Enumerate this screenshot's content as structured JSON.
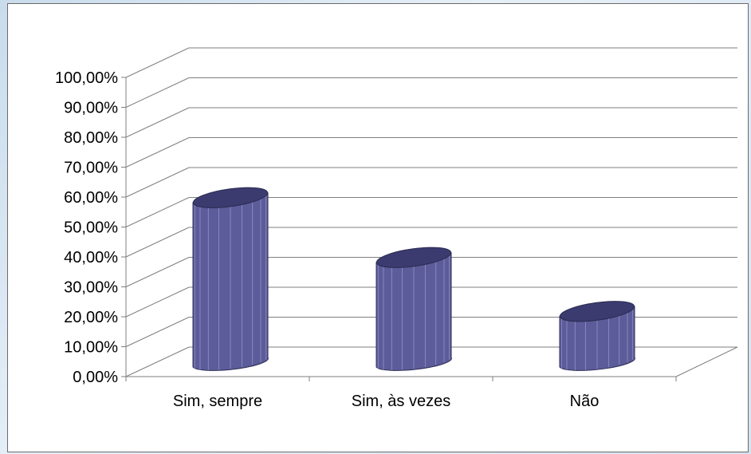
{
  "chart_data": {
    "type": "bar",
    "style": "3d-cylinder",
    "categories": [
      "Sim, sempre",
      "Sim, às vezes",
      "Não"
    ],
    "values": [
      0.55,
      0.35,
      0.17
    ],
    "ylim": [
      0,
      1.0
    ],
    "yticks": [
      0.0,
      0.1,
      0.2,
      0.3,
      0.4,
      0.5,
      0.6,
      0.7,
      0.8,
      0.9,
      1.0
    ],
    "ytick_labels": [
      "0,00%",
      "10,00%",
      "20,00%",
      "30,00%",
      "40,00%",
      "50,00%",
      "60,00%",
      "70,00%",
      "80,00%",
      "90,00%",
      "100,00%"
    ],
    "grid": true,
    "legend": "none",
    "colors": {
      "bar": "#5c5c9a",
      "bar_top": "#3b3b70",
      "grid": "#7f7f7f",
      "frame": "#6b6b6b"
    }
  }
}
